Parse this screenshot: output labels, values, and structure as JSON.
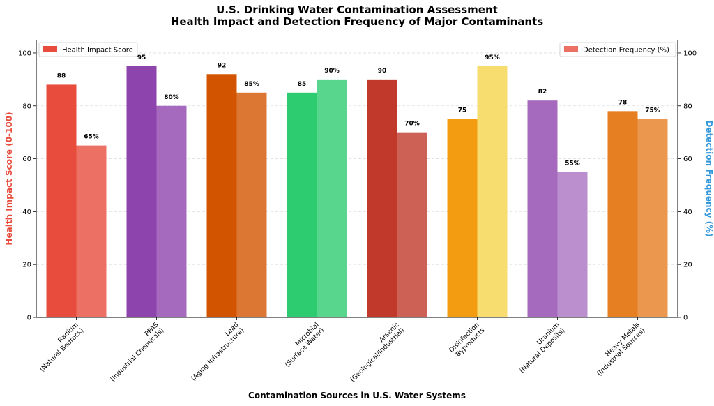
{
  "chart_data": {
    "type": "bar",
    "title": "U.S. Drinking Water Contamination Assessment",
    "subtitle": "Health Impact and Detection Frequency of Major Contaminants",
    "xlabel": "Contamination Sources in U.S. Water Systems",
    "ylabel_left": "Health Impact Score (0-100)",
    "ylabel_right": "Detection Frequency (%)",
    "ylim": [
      0,
      105
    ],
    "yticks": [
      0,
      20,
      40,
      60,
      80,
      100
    ],
    "grid": true,
    "categories": [
      [
        "Radium",
        "(Natural Bedrock)"
      ],
      [
        "PFAS",
        "(Industrial Chemicals)"
      ],
      [
        "Lead",
        "(Aging Infrastructure)"
      ],
      [
        "Microbial",
        "(Surface Water)"
      ],
      [
        "Arsenic",
        "(Geological/Industrial)"
      ],
      [
        "Disinfection",
        "Byproducts"
      ],
      [
        "Uranium",
        "(Natural Deposits)"
      ],
      [
        "Heavy Metals",
        "(Industrial Sources)"
      ]
    ],
    "series": [
      {
        "name": "Health Impact Score",
        "axis": "left",
        "values": [
          88,
          95,
          92,
          85,
          90,
          75,
          82,
          78
        ],
        "label_suffix": "",
        "legend_color": "#e74c3c",
        "colors": [
          "#e74c3c",
          "#8e44ad",
          "#d35400",
          "#2ecc71",
          "#c0392b",
          "#f39c12",
          "#a569bd",
          "#e67e22"
        ],
        "legend_position": "upper-left"
      },
      {
        "name": "Detection Frequency (%)",
        "axis": "right",
        "values": [
          65,
          80,
          85,
          90,
          70,
          95,
          55,
          75
        ],
        "label_suffix": "%",
        "legend_color": "#ec7063",
        "colors": [
          "#ec7063",
          "#a569bd",
          "#dc7633",
          "#58d68d",
          "#cd6155",
          "#f7dc6f",
          "#bb8fce",
          "#eb984e"
        ],
        "legend_position": "upper-right"
      }
    ],
    "left_label_color": "#e74c3c",
    "right_label_color": "#3498db"
  }
}
